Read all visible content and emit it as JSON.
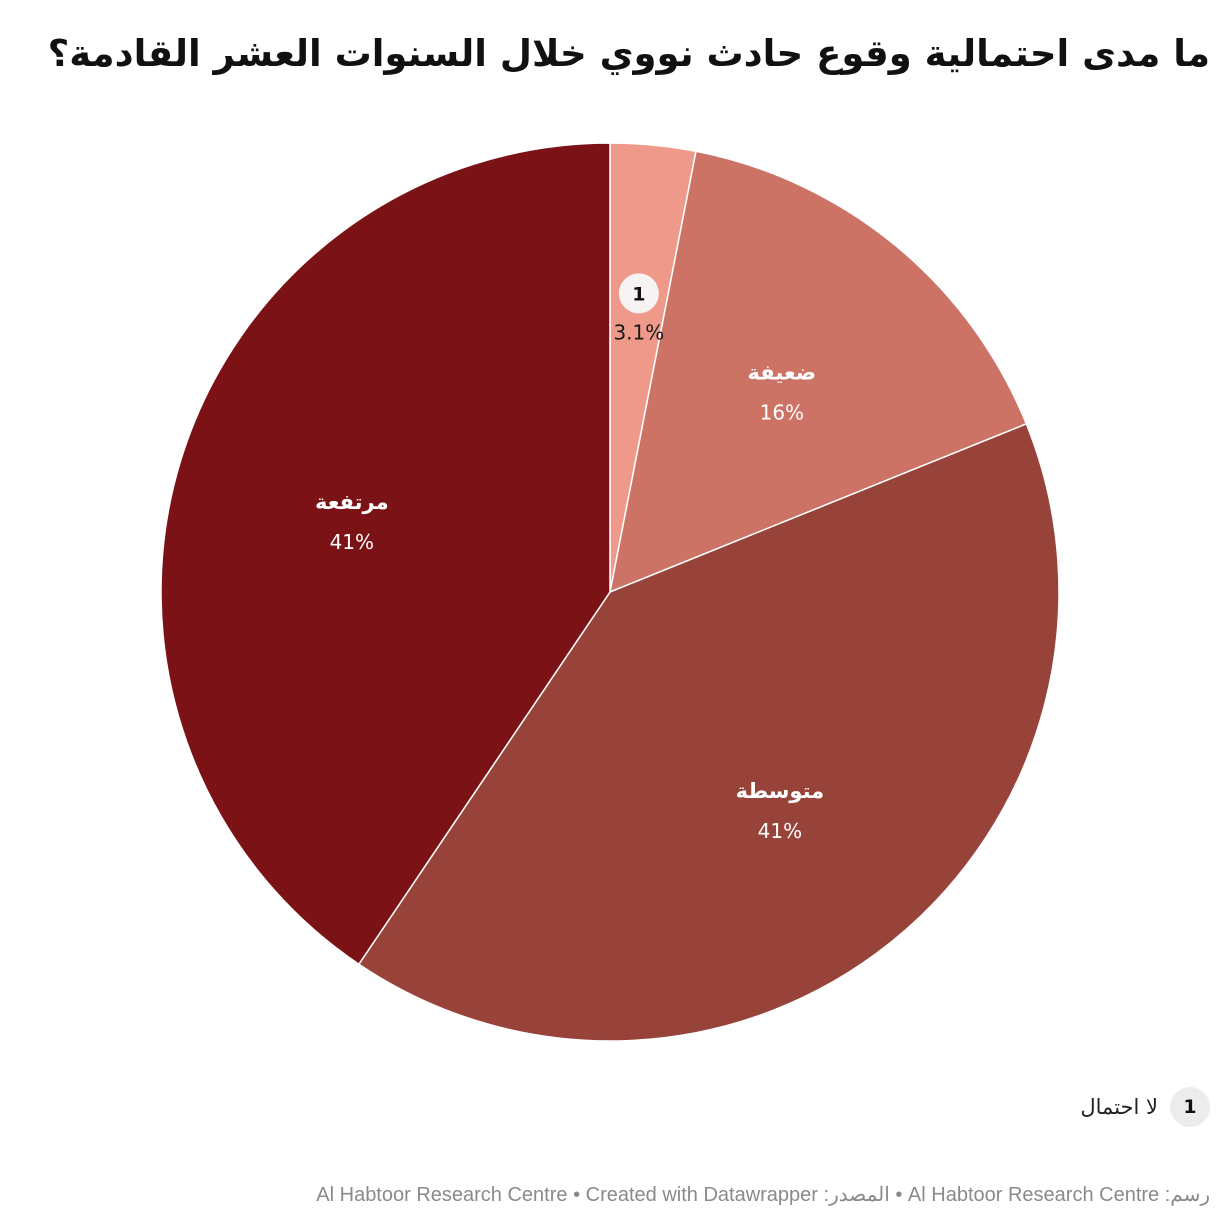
{
  "title": "ما مدى احتمالية وقوع حادث نووي خلال السنوات العشر القادمة؟",
  "chart_data": {
    "type": "pie",
    "title": "ما مدى احتمالية وقوع حادث نووي خلال السنوات العشر القادمة؟",
    "slices": [
      {
        "label": "لا احتمال",
        "value": 3.1,
        "value_label": "3.1%",
        "marker": "1",
        "color": "#ee998a"
      },
      {
        "label": "ضعيفة",
        "value": 16,
        "value_label": "16%",
        "color": "#cc7366"
      },
      {
        "label": "متوسطة",
        "value": 41,
        "value_label": "41%",
        "color": "#98433a"
      },
      {
        "label": "مرتفعة",
        "value": 41,
        "value_label": "41%",
        "color": "#7b1216"
      }
    ]
  },
  "legend": {
    "marker": "1",
    "text": "لا احتمال"
  },
  "footer": "رسم: Al Habtoor Research Centre • المصدر: Al Habtoor Research Centre • Created with Datawrapper"
}
